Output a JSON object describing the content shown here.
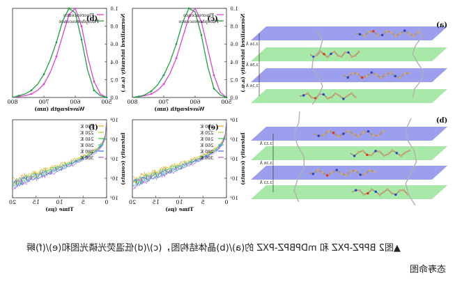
{
  "figure": {
    "caption_line1": "▲图2 BPPZ-PXZ 和 mDPBPZ-PXZ 的(a)/(b)晶体结构图，(c)/(d)低温荧光磷光图和(e)/(f)瞬",
    "caption_line2": "态寿命图",
    "panel_labels": [
      "(a)",
      "(b)",
      "(c)",
      "(d)",
      "(e)",
      "(f)"
    ],
    "distances": [
      "3.34 Å",
      "3.56 Å",
      "3.34 Å",
      "3.33 Å",
      "3.36 Å",
      "3.33 Å"
    ]
  },
  "colors": {
    "fluorescence": "#e040d0",
    "phosphorescence": "#20a040",
    "plane_blue": "#7b7fe8",
    "plane_green": "#8be08b"
  },
  "chart_data": [
    {
      "panel": "(b)",
      "type": "line",
      "xlabel": "Wavelength (nm)",
      "ylabel": "Normalized intensity (a.u.)",
      "xlim": [
        500,
        800
      ],
      "ylim": [
        0.0,
        1.0
      ],
      "xticks": [
        500,
        600,
        700,
        800
      ],
      "yticks": [
        0.0,
        0.2,
        0.4,
        0.6,
        0.8,
        1.0
      ],
      "series": [
        {
          "name": "Fluorescence",
          "x": [
            500,
            520,
            540,
            560,
            580,
            600,
            620,
            640,
            660,
            680,
            700,
            720,
            740,
            760,
            780,
            800
          ],
          "y": [
            0.0,
            0.04,
            0.18,
            0.45,
            0.8,
            1.0,
            0.93,
            0.7,
            0.46,
            0.28,
            0.15,
            0.08,
            0.04,
            0.02,
            0.01,
            0.0
          ]
        },
        {
          "name": "Phosphorescence",
          "x": [
            500,
            520,
            540,
            560,
            580,
            600,
            620,
            640,
            660,
            680,
            700,
            720,
            740,
            760,
            780,
            800
          ],
          "y": [
            0.0,
            0.02,
            0.08,
            0.3,
            0.65,
            0.95,
            1.0,
            0.86,
            0.62,
            0.42,
            0.26,
            0.15,
            0.08,
            0.04,
            0.02,
            0.0
          ]
        }
      ]
    },
    {
      "panel": "(c)",
      "type": "line",
      "xlabel": "Wavelength (nm)",
      "ylabel": "Normalized intensity (a.u.)",
      "xlim": [
        500,
        800
      ],
      "ylim": [
        0.0,
        1.0
      ],
      "xticks": [
        500,
        600,
        700,
        800
      ],
      "yticks": [
        0.0,
        0.2,
        0.4,
        0.6,
        0.8,
        1.0
      ],
      "series": [
        {
          "name": "Fluorescence",
          "x": [
            500,
            520,
            540,
            560,
            580,
            600,
            620,
            640,
            660,
            680,
            700,
            720,
            740,
            760,
            780,
            800
          ],
          "y": [
            0.0,
            0.06,
            0.25,
            0.55,
            0.85,
            1.0,
            0.9,
            0.67,
            0.44,
            0.27,
            0.15,
            0.08,
            0.04,
            0.02,
            0.01,
            0.0
          ]
        },
        {
          "name": "Phosphorescence",
          "x": [
            500,
            520,
            540,
            560,
            580,
            600,
            620,
            640,
            660,
            680,
            700,
            720,
            740,
            760,
            780,
            800
          ],
          "y": [
            0.0,
            0.03,
            0.1,
            0.35,
            0.7,
            0.96,
            1.0,
            0.84,
            0.6,
            0.4,
            0.25,
            0.14,
            0.07,
            0.03,
            0.01,
            0.0
          ]
        }
      ]
    },
    {
      "panel": "(f)",
      "type": "line",
      "xlabel": "Time (μs)",
      "ylabel": "Intensity (counts)",
      "xlim": [
        0,
        20
      ],
      "ylim": [
        1,
        10000
      ],
      "yscale": "log",
      "xticks": [
        0,
        5,
        10,
        15,
        20
      ],
      "yticks": [
        1,
        10,
        100,
        1000,
        10000
      ],
      "series": [
        {
          "name": "200 K",
          "x": [
            0,
            0.3,
            1,
            2,
            4,
            6,
            8,
            10,
            12,
            14,
            16,
            18,
            20
          ],
          "y": [
            9000,
            1600,
            650,
            350,
            180,
            110,
            70,
            45,
            30,
            22,
            15,
            10,
            7
          ]
        },
        {
          "name": "220 K",
          "x": [
            0,
            0.3,
            1,
            2,
            4,
            6,
            8,
            10,
            12,
            14,
            16,
            18,
            20
          ],
          "y": [
            9000,
            1500,
            600,
            320,
            160,
            95,
            60,
            40,
            27,
            19,
            13,
            9,
            6
          ]
        },
        {
          "name": "240 K",
          "x": [
            0,
            0.3,
            1,
            2,
            4,
            6,
            8,
            10,
            12,
            14,
            16,
            18,
            20
          ],
          "y": [
            9000,
            1400,
            560,
            300,
            150,
            88,
            55,
            36,
            24,
            17,
            12,
            8,
            5
          ]
        },
        {
          "name": "260 K",
          "x": [
            0,
            0.3,
            1,
            2,
            4,
            6,
            8,
            10,
            12,
            14,
            16,
            18,
            20
          ],
          "y": [
            9000,
            1300,
            520,
            280,
            140,
            82,
            50,
            33,
            22,
            15,
            11,
            7,
            5
          ]
        },
        {
          "name": "280 K",
          "x": [
            0,
            0.3,
            1,
            2,
            4,
            6,
            8,
            10,
            12,
            14,
            16,
            18,
            20
          ],
          "y": [
            9000,
            1200,
            480,
            260,
            130,
            76,
            46,
            30,
            20,
            14,
            10,
            7,
            4
          ]
        },
        {
          "name": "300 K",
          "x": [
            0,
            0.3,
            1,
            2,
            4,
            6,
            8,
            10,
            12,
            14,
            16,
            18,
            20
          ],
          "y": [
            9000,
            1100,
            450,
            240,
            120,
            70,
            42,
            28,
            18,
            13,
            9,
            6,
            4
          ]
        }
      ]
    },
    {
      "panel": "(e)",
      "type": "line",
      "xlabel": "Time (μs)",
      "ylabel": "Intensity (counts)",
      "xlim": [
        0,
        20
      ],
      "ylim": [
        1,
        10000
      ],
      "yscale": "log",
      "xticks": [
        0,
        5,
        10,
        15,
        20
      ],
      "yticks": [
        1,
        10,
        100,
        1000,
        10000
      ],
      "series": [
        {
          "name": "200 K",
          "x": [
            0,
            0.3,
            1,
            2,
            4,
            6,
            8,
            10,
            12,
            14,
            16,
            18,
            20
          ],
          "y": [
            9000,
            1700,
            700,
            380,
            200,
            120,
            78,
            52,
            35,
            25,
            17,
            12,
            8
          ]
        },
        {
          "name": "220 K",
          "x": [
            0,
            0.3,
            1,
            2,
            4,
            6,
            8,
            10,
            12,
            14,
            16,
            18,
            20
          ],
          "y": [
            9000,
            1600,
            650,
            350,
            180,
            108,
            70,
            46,
            31,
            22,
            15,
            10,
            7
          ]
        },
        {
          "name": "240 K",
          "x": [
            0,
            0.3,
            1,
            2,
            4,
            6,
            8,
            10,
            12,
            14,
            16,
            18,
            20
          ],
          "y": [
            9000,
            1500,
            610,
            330,
            165,
            98,
            63,
            41,
            28,
            19,
            13,
            9,
            6
          ]
        },
        {
          "name": "260 K",
          "x": [
            0,
            0.3,
            1,
            2,
            4,
            6,
            8,
            10,
            12,
            14,
            16,
            18,
            20
          ],
          "y": [
            9000,
            1400,
            570,
            305,
            150,
            90,
            57,
            37,
            25,
            17,
            12,
            8,
            5
          ]
        },
        {
          "name": "280 K",
          "x": [
            0,
            0.3,
            1,
            2,
            4,
            6,
            8,
            10,
            12,
            14,
            16,
            18,
            20
          ],
          "y": [
            9000,
            1300,
            530,
            285,
            140,
            83,
            52,
            34,
            23,
            16,
            11,
            7,
            5
          ]
        },
        {
          "name": "300 K",
          "x": [
            0,
            0.3,
            1,
            2,
            4,
            6,
            8,
            10,
            12,
            14,
            16,
            18,
            20
          ],
          "y": [
            9000,
            1200,
            490,
            265,
            130,
            76,
            48,
            31,
            21,
            14,
            10,
            7,
            4
          ]
        }
      ]
    }
  ]
}
